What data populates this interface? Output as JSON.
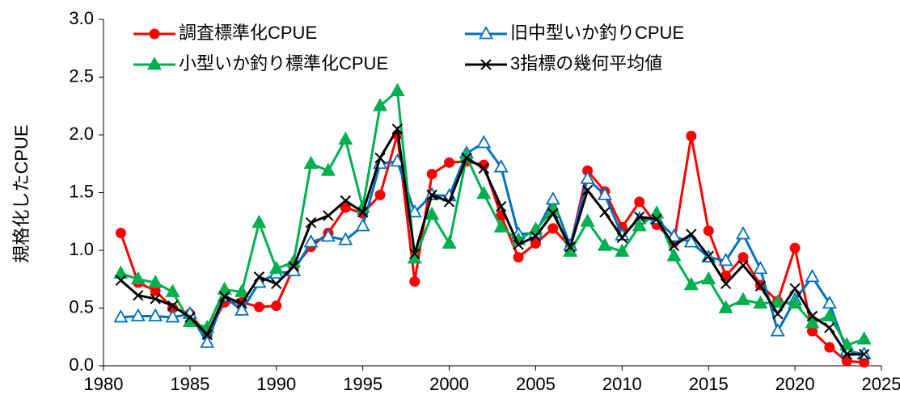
{
  "chart_data": {
    "type": "line",
    "ylabel": "規格化したCPUE",
    "x": [
      1981,
      1982,
      1983,
      1984,
      1985,
      1986,
      1987,
      1988,
      1989,
      1990,
      1991,
      1992,
      1993,
      1994,
      1995,
      1996,
      1997,
      1998,
      1999,
      2000,
      2001,
      2002,
      2003,
      2004,
      2005,
      2006,
      2007,
      2008,
      2009,
      2010,
      2011,
      2012,
      2013,
      2014,
      2015,
      2016,
      2017,
      2018,
      2019,
      2020,
      2021,
      2022,
      2023,
      2024
    ],
    "series": [
      {
        "name": "調査標準化CPUE",
        "color": "#ff0000",
        "marker": "circle",
        "values": [
          1.15,
          0.72,
          0.65,
          0.5,
          0.45,
          0.27,
          0.55,
          0.55,
          0.51,
          0.52,
          0.85,
          1.03,
          1.15,
          1.37,
          1.32,
          1.48,
          2.0,
          0.73,
          1.66,
          1.76,
          1.77,
          1.74,
          1.3,
          0.94,
          1.06,
          1.19,
          1.03,
          1.69,
          1.51,
          1.2,
          1.42,
          1.22,
          1.07,
          1.99,
          1.17,
          0.78,
          0.94,
          0.7,
          0.56,
          1.02,
          0.3,
          0.16,
          0.04,
          0.03
        ]
      },
      {
        "name": "旧中型いか釣りCPUE",
        "color": "#0070c0",
        "marker": "open-triangle",
        "values": [
          0.42,
          0.43,
          0.43,
          0.42,
          0.45,
          0.2,
          0.6,
          0.48,
          0.72,
          0.8,
          0.82,
          1.07,
          1.12,
          1.09,
          1.21,
          1.75,
          1.77,
          1.33,
          1.48,
          1.47,
          1.84,
          1.93,
          1.72,
          1.14,
          1.15,
          1.44,
          1.04,
          1.62,
          1.48,
          1.13,
          1.27,
          1.27,
          1.12,
          1.07,
          0.94,
          0.91,
          1.14,
          0.84,
          0.3,
          0.57,
          0.77,
          0.54,
          0.13,
          0.1
        ]
      },
      {
        "name": "小型いか釣り標準化CPUE",
        "color": "#00b050",
        "marker": "triangle",
        "values": [
          0.8,
          0.75,
          0.72,
          0.64,
          0.38,
          0.33,
          0.66,
          0.64,
          1.24,
          0.84,
          0.9,
          1.75,
          1.69,
          1.96,
          1.37,
          2.25,
          2.38,
          0.93,
          1.31,
          1.06,
          1.81,
          1.49,
          1.2,
          1.09,
          1.18,
          1.35,
          0.99,
          1.25,
          1.04,
          0.99,
          1.21,
          1.32,
          0.95,
          0.7,
          0.75,
          0.5,
          0.57,
          0.54,
          0.55,
          0.54,
          0.37,
          0.43,
          0.18,
          0.23
        ]
      },
      {
        "name": "3指標の幾何平均値",
        "color": "#000000",
        "marker": "x",
        "values": [
          0.74,
          0.61,
          0.58,
          0.52,
          0.42,
          0.27,
          0.6,
          0.54,
          0.77,
          0.71,
          0.86,
          1.24,
          1.3,
          1.43,
          1.33,
          1.8,
          2.05,
          0.97,
          1.48,
          1.42,
          1.8,
          1.71,
          1.38,
          1.05,
          1.12,
          1.32,
          1.03,
          1.52,
          1.33,
          1.11,
          1.29,
          1.27,
          1.04,
          1.14,
          0.95,
          0.71,
          0.87,
          0.69,
          0.45,
          0.67,
          0.43,
          0.33,
          0.1,
          0.1
        ]
      }
    ],
    "xlim": [
      1980,
      2025
    ],
    "xticks": [
      1980,
      1985,
      1990,
      1995,
      2000,
      2005,
      2010,
      2015,
      2020,
      2025
    ],
    "ylim": [
      0,
      3
    ],
    "yticks": [
      {
        "value": 0,
        "label": "0.0"
      },
      {
        "value": 0.5,
        "label": "0.5"
      },
      {
        "value": 1,
        "label": "1.0"
      },
      {
        "value": 1.5,
        "label": "1.5"
      },
      {
        "value": 2,
        "label": "2.0"
      },
      {
        "value": 2.5,
        "label": "2.5"
      },
      {
        "value": 3,
        "label": "3.0"
      }
    ],
    "legend": "top"
  }
}
